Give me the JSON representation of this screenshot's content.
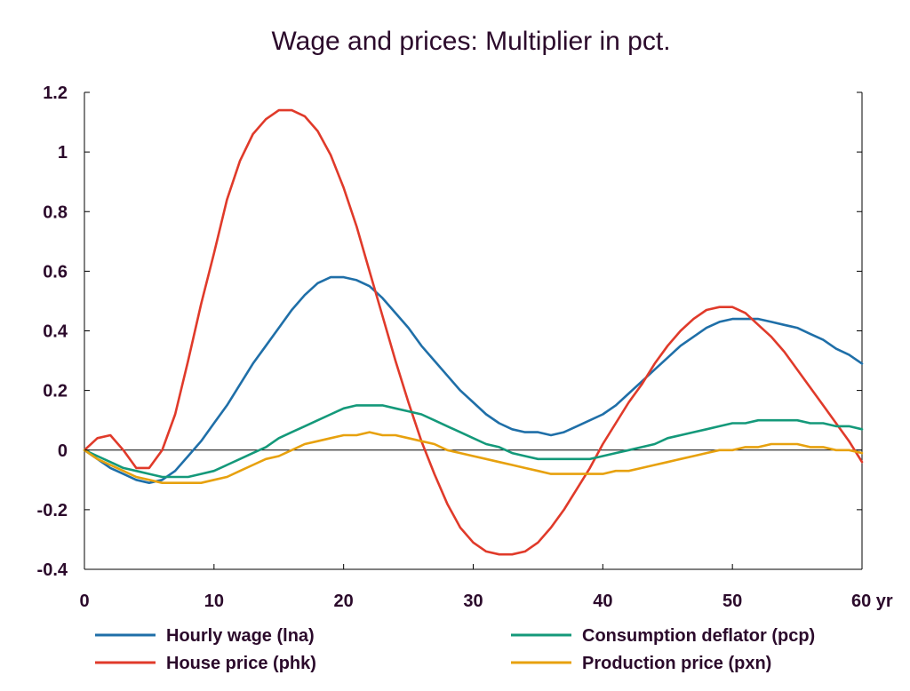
{
  "chart_data": {
    "type": "line",
    "title": "Wage and prices: Multiplier in pct.",
    "xlabel": "",
    "ylabel": "",
    "x_unit": "yr",
    "xlim": [
      0,
      60
    ],
    "ylim": [
      -0.4,
      1.2
    ],
    "xticks": [
      0,
      10,
      20,
      30,
      40,
      50,
      60
    ],
    "xtick_labels": [
      "0",
      "10",
      "20",
      "30",
      "40",
      "50",
      "60 yr"
    ],
    "yticks": [
      -0.4,
      -0.2,
      0,
      0.2,
      0.4,
      0.6,
      0.8,
      1,
      1.2
    ],
    "ytick_labels": [
      "-0.4",
      "-0.2",
      "0",
      "0.2",
      "0.4",
      "0.6",
      "0.8",
      "1",
      "1.2"
    ],
    "grid": false,
    "zero_line": true,
    "legend_position": "bottom",
    "x": [
      0,
      1,
      2,
      3,
      4,
      5,
      6,
      7,
      8,
      9,
      10,
      11,
      12,
      13,
      14,
      15,
      16,
      17,
      18,
      19,
      20,
      21,
      22,
      23,
      24,
      25,
      26,
      27,
      28,
      29,
      30,
      31,
      32,
      33,
      34,
      35,
      36,
      37,
      38,
      39,
      40,
      41,
      42,
      43,
      44,
      45,
      46,
      47,
      48,
      49,
      50,
      51,
      52,
      53,
      54,
      55,
      56,
      57,
      58,
      59,
      60
    ],
    "series": [
      {
        "name": "Hourly wage (lna)",
        "color": "#1f6fa8",
        "values": [
          0,
          -0.03,
          -0.06,
          -0.08,
          -0.1,
          -0.11,
          -0.1,
          -0.07,
          -0.02,
          0.03,
          0.09,
          0.15,
          0.22,
          0.29,
          0.35,
          0.41,
          0.47,
          0.52,
          0.56,
          0.58,
          0.58,
          0.57,
          0.55,
          0.51,
          0.46,
          0.41,
          0.35,
          0.3,
          0.25,
          0.2,
          0.16,
          0.12,
          0.09,
          0.07,
          0.06,
          0.06,
          0.05,
          0.06,
          0.08,
          0.1,
          0.12,
          0.15,
          0.19,
          0.23,
          0.27,
          0.31,
          0.35,
          0.38,
          0.41,
          0.43,
          0.44,
          0.44,
          0.44,
          0.43,
          0.42,
          0.41,
          0.39,
          0.37,
          0.34,
          0.32,
          0.29
        ]
      },
      {
        "name": "House price (phk)",
        "color": "#e03a2a",
        "values": [
          0,
          0.04,
          0.05,
          0.0,
          -0.06,
          -0.06,
          0.0,
          0.12,
          0.3,
          0.49,
          0.66,
          0.84,
          0.97,
          1.06,
          1.11,
          1.14,
          1.14,
          1.12,
          1.07,
          0.99,
          0.88,
          0.75,
          0.6,
          0.45,
          0.3,
          0.16,
          0.03,
          -0.08,
          -0.18,
          -0.26,
          -0.31,
          -0.34,
          -0.35,
          -0.35,
          -0.34,
          -0.31,
          -0.26,
          -0.2,
          -0.13,
          -0.06,
          0.02,
          0.09,
          0.16,
          0.22,
          0.29,
          0.35,
          0.4,
          0.44,
          0.47,
          0.48,
          0.48,
          0.46,
          0.42,
          0.38,
          0.33,
          0.27,
          0.21,
          0.15,
          0.09,
          0.03,
          -0.04
        ]
      },
      {
        "name": "Consumption deflator (pcp)",
        "color": "#14997a",
        "values": [
          0,
          -0.02,
          -0.04,
          -0.06,
          -0.07,
          -0.08,
          -0.09,
          -0.09,
          -0.09,
          -0.08,
          -0.07,
          -0.05,
          -0.03,
          -0.01,
          0.01,
          0.04,
          0.06,
          0.08,
          0.1,
          0.12,
          0.14,
          0.15,
          0.15,
          0.15,
          0.14,
          0.13,
          0.12,
          0.1,
          0.08,
          0.06,
          0.04,
          0.02,
          0.01,
          -0.01,
          -0.02,
          -0.03,
          -0.03,
          -0.03,
          -0.03,
          -0.03,
          -0.02,
          -0.01,
          0.0,
          0.01,
          0.02,
          0.04,
          0.05,
          0.06,
          0.07,
          0.08,
          0.09,
          0.09,
          0.1,
          0.1,
          0.1,
          0.1,
          0.09,
          0.09,
          0.08,
          0.08,
          0.07
        ]
      },
      {
        "name": "Production price (pxn)",
        "color": "#e7a10e",
        "values": [
          0,
          -0.03,
          -0.05,
          -0.07,
          -0.09,
          -0.1,
          -0.11,
          -0.11,
          -0.11,
          -0.11,
          -0.1,
          -0.09,
          -0.07,
          -0.05,
          -0.03,
          -0.02,
          0.0,
          0.02,
          0.03,
          0.04,
          0.05,
          0.05,
          0.06,
          0.05,
          0.05,
          0.04,
          0.03,
          0.02,
          0.0,
          -0.01,
          -0.02,
          -0.03,
          -0.04,
          -0.05,
          -0.06,
          -0.07,
          -0.08,
          -0.08,
          -0.08,
          -0.08,
          -0.08,
          -0.07,
          -0.07,
          -0.06,
          -0.05,
          -0.04,
          -0.03,
          -0.02,
          -0.01,
          0.0,
          0.0,
          0.01,
          0.01,
          0.02,
          0.02,
          0.02,
          0.01,
          0.01,
          0.0,
          0.0,
          -0.01
        ]
      }
    ]
  }
}
